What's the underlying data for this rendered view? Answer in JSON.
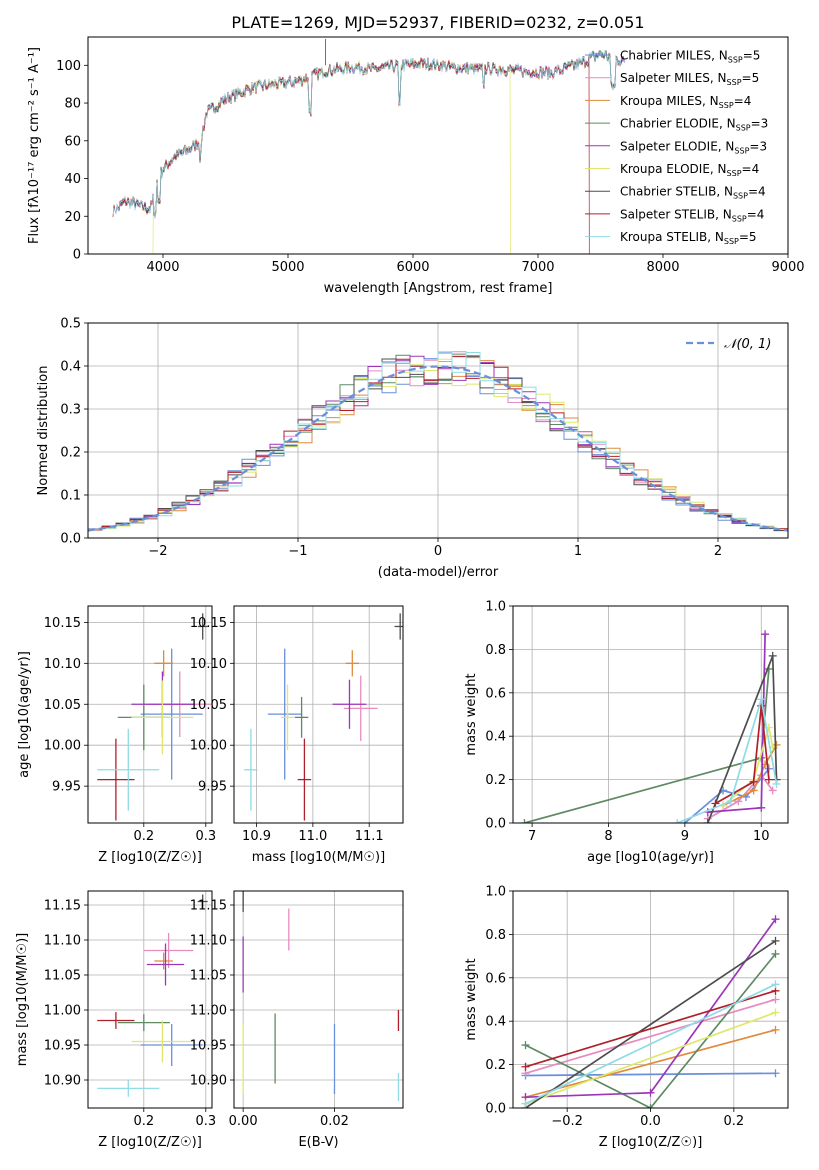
{
  "figure_title": "PLATE=1269, MJD=52937, FIBERID=0232, z=0.051",
  "colors": {
    "Chabrier MILES": "#6a8fdc",
    "Salpeter MILES": "#e88bbf",
    "Kroupa MILES": "#e08a3a",
    "Chabrier ELODIE": "#5d8a63",
    "Salpeter ELODIE": "#9b36b8",
    "Kroupa ELODIE": "#dfe86c",
    "Chabrier STELIB": "#4d4d4d",
    "Salpeter STELIB": "#b0202a",
    "Kroupa STELIB": "#8fdbe6",
    "normal_curve": "#6a8fdc"
  },
  "chart_data": [
    {
      "id": "spectrum",
      "type": "line",
      "title": "PLATE=1269, MJD=52937, FIBERID=0232, z=0.051",
      "xlabel": "wavelength [Angstrom, rest frame]",
      "ylabel": "Flux [fλ10⁻¹⁷ erg cm⁻² s⁻¹ A⁻¹]",
      "xlim": [
        3400,
        9000
      ],
      "ylim": [
        0,
        115
      ],
      "xticks": [
        4000,
        5000,
        6000,
        7000,
        8000,
        9000
      ],
      "yticks": [
        0,
        20,
        40,
        60,
        80,
        100
      ],
      "grid": false,
      "legend_position": "top-right",
      "continuum": {
        "x": [
          3600,
          3700,
          3800,
          3900,
          3950,
          4000,
          4100,
          4200,
          4300,
          4350,
          4500,
          4700,
          4900,
          5100,
          5300,
          5500,
          5700,
          5900,
          6100,
          6300,
          6500,
          6700,
          6900,
          7100,
          7300,
          7500,
          7700
        ],
        "y": [
          22,
          28,
          26,
          24,
          38,
          45,
          52,
          55,
          60,
          75,
          82,
          88,
          90,
          92,
          97,
          99,
          98,
          100,
          101,
          99,
          98,
          98,
          97,
          96,
          100,
          106,
          102
        ]
      },
      "dropouts": {
        "Kroupa ELODIE": [
          3920,
          6780
        ],
        "Salpeter STELIB": [
          7410
        ]
      },
      "series": [
        {
          "name": "Chabrier MILES, N_SSP=5"
        },
        {
          "name": "Salpeter MILES, N_SSP=5"
        },
        {
          "name": "Kroupa MILES, N_SSP=4"
        },
        {
          "name": "Chabrier ELODIE, N_SSP=3"
        },
        {
          "name": "Salpeter ELODIE, N_SSP=3"
        },
        {
          "name": "Kroupa ELODIE, N_SSP=4"
        },
        {
          "name": "Chabrier STELIB, N_SSP=4"
        },
        {
          "name": "Salpeter STELIB, N_SSP=4"
        },
        {
          "name": "Kroupa STELIB, N_SSP=5"
        }
      ]
    },
    {
      "id": "residuals",
      "type": "line",
      "xlabel": "(data-model)/error",
      "ylabel": "Normed distribution",
      "xlim": [
        -2.5,
        2.5
      ],
      "ylim": [
        0,
        0.5
      ],
      "xticks": [
        -2,
        -1,
        0,
        1,
        2
      ],
      "yticks": [
        0.0,
        0.1,
        0.2,
        0.3,
        0.4,
        0.5
      ],
      "grid": true,
      "legend_position": "top-right",
      "normal_curve": {
        "name": "𝒩(0, 1)",
        "mean": 0,
        "sd": 1
      },
      "bin_width": 0.1
    },
    {
      "id": "age-vs-Z",
      "type": "scatter",
      "xlabel": "Z [log10(Z/Z☉)]",
      "ylabel": "age [log10(age/yr)]",
      "xlim": [
        0.11,
        0.31
      ],
      "ylim": [
        9.905,
        10.17
      ],
      "xticks": [
        0.2,
        0.3
      ],
      "yticks": [
        9.95,
        10.0,
        10.05,
        10.1,
        10.15
      ],
      "grid": true,
      "points": [
        {
          "series": "Chabrier MILES",
          "x": 0.245,
          "y": 10.038,
          "xerr": 0.05,
          "yerr": 0.08
        },
        {
          "series": "Salpeter MILES",
          "x": 0.258,
          "y": 10.05,
          "xerr": 0.05,
          "yerr": 0.04
        },
        {
          "series": "Kroupa MILES",
          "x": 0.232,
          "y": 10.1,
          "xerr": 0.015,
          "yerr": 0.016
        },
        {
          "series": "Chabrier ELODIE",
          "x": 0.2,
          "y": 10.034,
          "xerr": 0.042,
          "yerr": 0.04
        },
        {
          "series": "Salpeter ELODIE",
          "x": 0.23,
          "y": 10.05,
          "xerr": 0.05,
          "yerr": 0.04
        },
        {
          "series": "Kroupa ELODIE",
          "x": 0.23,
          "y": 10.034,
          "xerr": 0.05,
          "yerr": 0.045
        },
        {
          "series": "Chabrier STELIB",
          "x": 0.295,
          "y": 10.145,
          "xerr": 0.008,
          "yerr": 0.016
        },
        {
          "series": "Salpeter STELIB",
          "x": 0.155,
          "y": 9.958,
          "xerr": 0.03,
          "yerr": 0.05
        },
        {
          "series": "Kroupa STELIB",
          "x": 0.175,
          "y": 9.97,
          "xerr": 0.05,
          "yerr": 0.05
        }
      ]
    },
    {
      "id": "age-vs-mass",
      "type": "scatter",
      "xlabel": "mass [log10(M/M☉)]",
      "ylabel": "",
      "xlim": [
        10.86,
        11.16
      ],
      "ylim": [
        9.905,
        10.17
      ],
      "xticks": [
        10.9,
        11.0,
        11.1
      ],
      "yticks": [
        9.95,
        10.0,
        10.05,
        10.1,
        10.15
      ],
      "grid": true,
      "points": [
        {
          "series": "Chabrier MILES",
          "x": 10.95,
          "y": 10.038,
          "xerr": 0.03,
          "yerr": 0.08
        },
        {
          "series": "Salpeter MILES",
          "x": 11.085,
          "y": 10.045,
          "xerr": 0.03,
          "yerr": 0.04
        },
        {
          "series": "Kroupa MILES",
          "x": 11.07,
          "y": 10.1,
          "xerr": 0.012,
          "yerr": 0.016
        },
        {
          "series": "Chabrier ELODIE",
          "x": 10.98,
          "y": 10.034,
          "xerr": 0.012,
          "yerr": 0.025
        },
        {
          "series": "Salpeter ELODIE",
          "x": 11.065,
          "y": 10.05,
          "xerr": 0.03,
          "yerr": 0.03
        },
        {
          "series": "Kroupa ELODIE",
          "x": 10.955,
          "y": 10.034,
          "xerr": 0.012,
          "yerr": 0.04
        },
        {
          "series": "Chabrier STELIB",
          "x": 11.155,
          "y": 10.145,
          "xerr": 0.01,
          "yerr": 0.016
        },
        {
          "series": "Salpeter STELIB",
          "x": 10.985,
          "y": 9.958,
          "xerr": 0.012,
          "yerr": 0.05
        },
        {
          "series": "Kroupa STELIB",
          "x": 10.89,
          "y": 9.97,
          "xerr": 0.012,
          "yerr": 0.05
        }
      ]
    },
    {
      "id": "weight-vs-age",
      "type": "line",
      "xlabel": "age [log10(age/yr)]",
      "ylabel": "mass weight",
      "xlim": [
        6.75,
        10.35
      ],
      "ylim": [
        0,
        1.0
      ],
      "xticks": [
        7,
        8,
        9,
        10
      ],
      "yticks": [
        0.0,
        0.2,
        0.4,
        0.6,
        0.8,
        1.0
      ],
      "grid": true,
      "series": [
        {
          "series": "Chabrier MILES",
          "x": [
            9.0,
            9.5,
            9.8,
            10.1
          ],
          "y": [
            0.0,
            0.15,
            0.12,
            0.25
          ]
        },
        {
          "series": "Salpeter MILES",
          "x": [
            9.3,
            9.7,
            10.0,
            10.15
          ],
          "y": [
            0.02,
            0.1,
            0.22,
            0.15
          ]
        },
        {
          "series": "Kroupa MILES",
          "x": [
            9.5,
            9.9,
            10.05,
            10.2
          ],
          "y": [
            0.08,
            0.15,
            0.27,
            0.36
          ]
        },
        {
          "series": "Chabrier ELODIE",
          "x": [
            6.9,
            10.0,
            10.1
          ],
          "y": [
            0.0,
            0.3,
            0.71
          ]
        },
        {
          "series": "Salpeter ELODIE",
          "x": [
            9.3,
            10.0,
            10.05
          ],
          "y": [
            0.05,
            0.07,
            0.87
          ]
        },
        {
          "series": "Kroupa ELODIE",
          "x": [
            9.5,
            9.9,
            10.1,
            10.15
          ],
          "y": [
            0.08,
            0.2,
            0.44,
            0.35
          ]
        },
        {
          "series": "Chabrier STELIB",
          "x": [
            9.3,
            10.15,
            10.2
          ],
          "y": [
            0.0,
            0.77,
            0.2
          ]
        },
        {
          "series": "Salpeter STELIB",
          "x": [
            9.4,
            9.9,
            10.0,
            10.1
          ],
          "y": [
            0.09,
            0.19,
            0.54,
            0.2
          ]
        },
        {
          "series": "Kroupa STELIB",
          "x": [
            8.9,
            9.6,
            10.0,
            10.2
          ],
          "y": [
            0.0,
            0.1,
            0.57,
            0.18
          ]
        }
      ]
    },
    {
      "id": "mass-vs-Z",
      "type": "scatter",
      "xlabel": "Z [log10(Z/Z☉)]",
      "ylabel": "mass [log10(M/M☉)]",
      "xlim": [
        0.11,
        0.31
      ],
      "ylim": [
        10.86,
        11.17
      ],
      "xticks": [
        0.2,
        0.3
      ],
      "yticks": [
        10.9,
        10.95,
        11.0,
        11.05,
        11.1,
        11.15
      ],
      "grid": true,
      "points": [
        {
          "series": "Chabrier MILES",
          "x": 0.245,
          "y": 10.95,
          "xerr": 0.05,
          "yerr": 0.03
        },
        {
          "series": "Salpeter MILES",
          "x": 0.24,
          "y": 11.085,
          "xerr": 0.04,
          "yerr": 0.025
        },
        {
          "series": "Kroupa MILES",
          "x": 0.232,
          "y": 11.07,
          "xerr": 0.015,
          "yerr": 0.012
        },
        {
          "series": "Chabrier ELODIE",
          "x": 0.2,
          "y": 10.982,
          "xerr": 0.042,
          "yerr": 0.012
        },
        {
          "series": "Salpeter ELODIE",
          "x": 0.235,
          "y": 11.065,
          "xerr": 0.03,
          "yerr": 0.03
        },
        {
          "series": "Kroupa ELODIE",
          "x": 0.23,
          "y": 10.955,
          "xerr": 0.05,
          "yerr": 0.03
        },
        {
          "series": "Chabrier STELIB",
          "x": 0.295,
          "y": 11.155,
          "xerr": 0.008,
          "yerr": 0.01
        },
        {
          "series": "Salpeter STELIB",
          "x": 0.155,
          "y": 10.985,
          "xerr": 0.03,
          "yerr": 0.012
        },
        {
          "series": "Kroupa STELIB",
          "x": 0.175,
          "y": 10.888,
          "xerr": 0.05,
          "yerr": 0.012
        }
      ]
    },
    {
      "id": "mass-vs-ebv",
      "type": "scatter",
      "xlabel": "E(B-V)",
      "ylabel": "",
      "xlim": [
        -0.002,
        0.035
      ],
      "ylim": [
        10.86,
        11.17
      ],
      "xticks": [
        0.0,
        0.02
      ],
      "yticks": [
        10.9,
        10.95,
        11.0,
        11.05,
        11.1,
        11.15
      ],
      "grid": true,
      "points": [
        {
          "series": "Chabrier MILES",
          "x": 0.02,
          "y": 10.93,
          "xerr": 0.0,
          "yerr": 0.05
        },
        {
          "series": "Salpeter MILES",
          "x": 0.01,
          "y": 11.115,
          "xerr": 0.0,
          "yerr": 0.03
        },
        {
          "series": "Kroupa MILES",
          "x": 0.0,
          "y": 11.16,
          "xerr": 0.0,
          "yerr": 0.012
        },
        {
          "series": "Chabrier ELODIE",
          "x": 0.007,
          "y": 10.945,
          "xerr": 0.0,
          "yerr": 0.05
        },
        {
          "series": "Salpeter ELODIE",
          "x": 0.0,
          "y": 11.065,
          "xerr": 0.0,
          "yerr": 0.04
        },
        {
          "series": "Kroupa ELODIE",
          "x": 0.0,
          "y": 10.93,
          "xerr": 0.0,
          "yerr": 0.05
        },
        {
          "series": "Chabrier STELIB",
          "x": 0.0,
          "y": 11.155,
          "xerr": 0.0,
          "yerr": 0.015
        },
        {
          "series": "Salpeter STELIB",
          "x": 0.034,
          "y": 10.985,
          "xerr": 0.0,
          "yerr": 0.015
        },
        {
          "series": "Kroupa STELIB",
          "x": 0.034,
          "y": 10.89,
          "xerr": 0.0,
          "yerr": 0.02
        }
      ]
    },
    {
      "id": "weight-vs-Z",
      "type": "line",
      "xlabel": "Z [log10(Z/Z☉)]",
      "ylabel": "mass weight",
      "xlim": [
        -0.33,
        0.33
      ],
      "ylim": [
        0,
        1.0
      ],
      "xticks": [
        -0.2,
        0.0,
        0.2
      ],
      "yticks": [
        0.0,
        0.2,
        0.4,
        0.6,
        0.8,
        1.0
      ],
      "grid": true,
      "series": [
        {
          "series": "Chabrier MILES",
          "x": [
            -0.3,
            0.3
          ],
          "y": [
            0.15,
            0.16
          ]
        },
        {
          "series": "Salpeter MILES",
          "x": [
            -0.3,
            0.3
          ],
          "y": [
            0.16,
            0.5
          ]
        },
        {
          "series": "Kroupa MILES",
          "x": [
            -0.3,
            0.3
          ],
          "y": [
            0.05,
            0.36
          ]
        },
        {
          "series": "Chabrier ELODIE",
          "x": [
            -0.3,
            0.0,
            0.3
          ],
          "y": [
            0.29,
            0.0,
            0.71
          ]
        },
        {
          "series": "Salpeter ELODIE",
          "x": [
            -0.3,
            0.0,
            0.3
          ],
          "y": [
            0.05,
            0.07,
            0.87
          ]
        },
        {
          "series": "Kroupa ELODIE",
          "x": [
            -0.3,
            0.3
          ],
          "y": [
            0.02,
            0.44
          ]
        },
        {
          "series": "Chabrier STELIB",
          "x": [
            -0.3,
            0.3
          ],
          "y": [
            0.0,
            0.77
          ]
        },
        {
          "series": "Salpeter STELIB",
          "x": [
            -0.3,
            0.3
          ],
          "y": [
            0.19,
            0.54
          ]
        },
        {
          "series": "Kroupa STELIB",
          "x": [
            -0.3,
            0.3
          ],
          "y": [
            0.02,
            0.57
          ]
        }
      ]
    }
  ]
}
